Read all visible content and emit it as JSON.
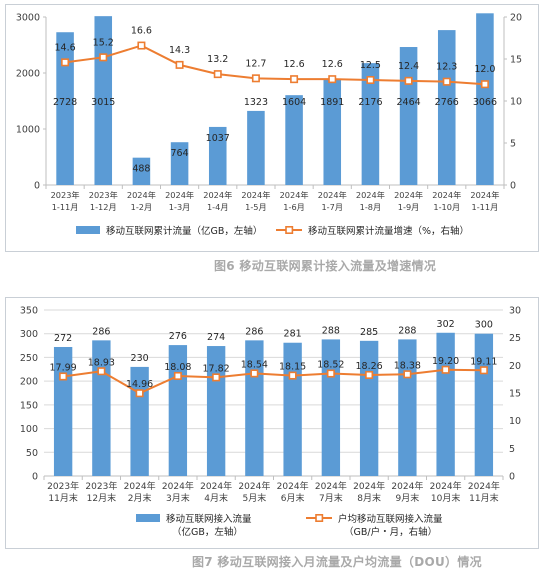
{
  "figure6": {
    "caption": "图6 移动互联网累计接入流量及增速情况",
    "chart_data": {
      "type": "bar",
      "categories": [
        [
          "2023年",
          "1-11月"
        ],
        [
          "2023年",
          "1-12月"
        ],
        [
          "2024年",
          "1-2月"
        ],
        [
          "2024年",
          "1-3月"
        ],
        [
          "2024年",
          "1-4月"
        ],
        [
          "2024年",
          "1-5月"
        ],
        [
          "2024年",
          "1-6月"
        ],
        [
          "2024年",
          "1-7月"
        ],
        [
          "2024年",
          "1-8月"
        ],
        [
          "2024年",
          "1-9月"
        ],
        [
          "2024年",
          "1-10月"
        ],
        [
          "2024年",
          "1-11月"
        ]
      ],
      "series": [
        {
          "name": "移动互联网累计流量（亿GB，左轴）",
          "type": "bar",
          "axis": "left",
          "color": "#5b9bd5",
          "values": [
            2728,
            3015,
            488,
            764,
            1037,
            1323,
            1604,
            1891,
            2176,
            2464,
            2766,
            3066
          ]
        },
        {
          "name": "移动互联网累计流量增速（%，右轴）",
          "type": "line",
          "axis": "right",
          "color": "#ed7d31",
          "values": [
            14.6,
            15.2,
            16.6,
            14.3,
            13.2,
            12.7,
            12.6,
            12.6,
            12.5,
            12.4,
            12.3,
            12.0
          ]
        }
      ],
      "left_axis": {
        "min": 0,
        "max": 3000,
        "ticks": [
          0,
          1000,
          2000,
          3000
        ]
      },
      "right_axis": {
        "min": 0,
        "max": 20,
        "ticks": [
          0,
          5,
          10,
          15,
          20
        ]
      },
      "legend_position": "bottom"
    }
  },
  "figure7": {
    "caption": "图7 移动互联网接入月流量及户均流量（DOU）情况",
    "chart_data": {
      "type": "bar",
      "categories": [
        [
          "2023年",
          "11月末"
        ],
        [
          "2023年",
          "12月末"
        ],
        [
          "2024年",
          "2月末"
        ],
        [
          "2024年",
          "3月末"
        ],
        [
          "2024年",
          "4月末"
        ],
        [
          "2024年",
          "5月末"
        ],
        [
          "2024年",
          "6月末"
        ],
        [
          "2024年",
          "7月末"
        ],
        [
          "2024年",
          "8月末"
        ],
        [
          "2024年",
          "9月末"
        ],
        [
          "2024年",
          "10月末"
        ],
        [
          "2024年",
          "11月末"
        ]
      ],
      "series": [
        {
          "name": [
            "移动互联网接入流量",
            "（亿GB，左轴）"
          ],
          "type": "bar",
          "axis": "left",
          "color": "#5b9bd5",
          "values": [
            272,
            286,
            230,
            276,
            274,
            286,
            281,
            288,
            285,
            288,
            302,
            300
          ]
        },
        {
          "name": [
            "户均移动互联网接入流量",
            "（GB/户・月，右轴）"
          ],
          "type": "line",
          "axis": "right",
          "color": "#ed7d31",
          "values": [
            17.99,
            18.93,
            14.96,
            18.08,
            17.82,
            18.54,
            18.15,
            18.52,
            18.26,
            18.38,
            19.2,
            19.11
          ],
          "labels": [
            "17.99",
            "18.93",
            "14.96",
            "18.08",
            "17.82",
            "18.54",
            "18.15",
            "18.52",
            "18.26",
            "18.38",
            "19.20",
            "19.11"
          ]
        }
      ],
      "left_axis": {
        "min": 0,
        "max": 350,
        "ticks": [
          0,
          50,
          100,
          150,
          200,
          250,
          300,
          350
        ]
      },
      "right_axis": {
        "min": 0,
        "max": 30,
        "ticks": [
          0,
          5,
          10,
          15,
          20,
          25,
          30
        ]
      },
      "legend_position": "bottom"
    }
  }
}
